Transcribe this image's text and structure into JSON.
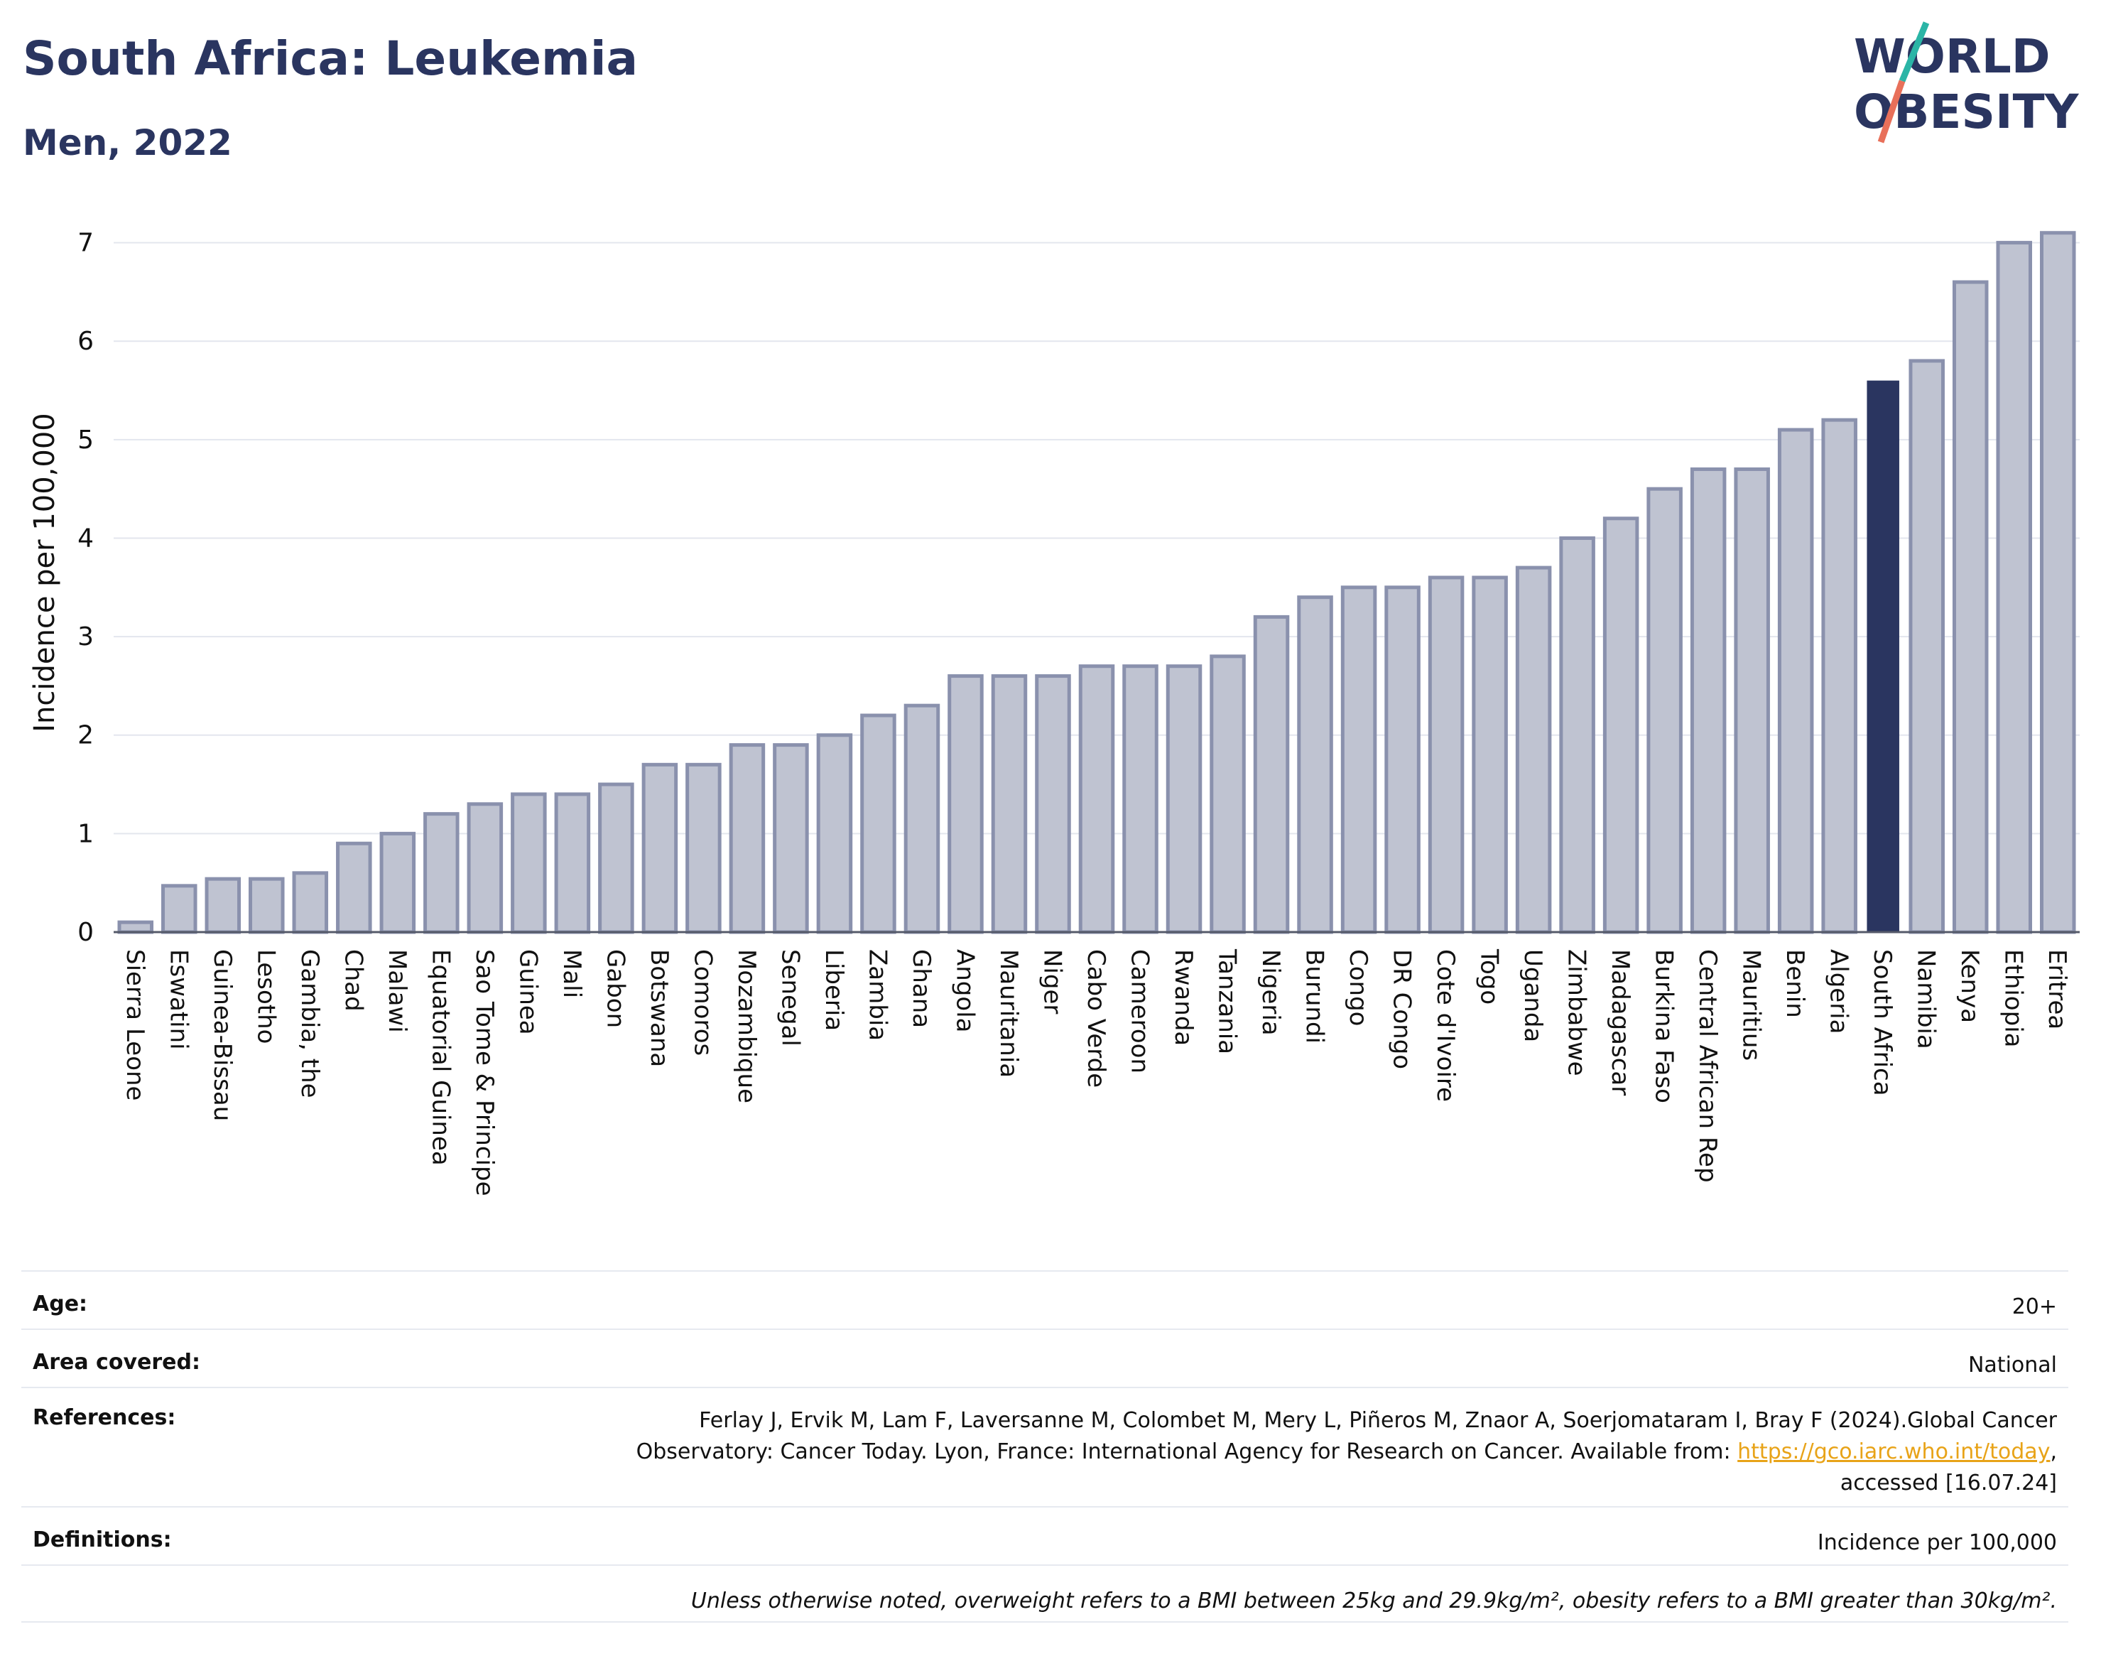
{
  "header": {
    "title": "South Africa: Leukemia",
    "subtitle": "Men, 2022",
    "logo_line1": "WORLD",
    "logo_line2": "OBESITY"
  },
  "colors": {
    "highlight": "#2a3560",
    "bar_fill": "#bfc3d1",
    "bar_stroke": "#8a91ad",
    "grid": "#e3e6ee",
    "logo_teal": "#2bb5a6",
    "logo_coral": "#e8705a"
  },
  "chart_data": {
    "type": "bar",
    "title": "South Africa: Leukemia",
    "subtitle": "Men, 2022",
    "ylabel": "Incidence per 100,000",
    "xlabel": "",
    "ylim": [
      0,
      7.3
    ],
    "yticks": [
      0,
      1,
      2,
      3,
      4,
      5,
      6,
      7
    ],
    "grid": true,
    "highlight": "South Africa",
    "categories": [
      "Sierra Leone",
      "Eswatini",
      "Guinea-Bissau",
      "Lesotho",
      "Gambia, the",
      "Chad",
      "Malawi",
      "Equatorial Guinea",
      "Sao Tome & Principe",
      "Guinea",
      "Mali",
      "Gabon",
      "Botswana",
      "Comoros",
      "Mozambique",
      "Senegal",
      "Liberia",
      "Zambia",
      "Ghana",
      "Angola",
      "Mauritania",
      "Niger",
      "Cabo Verde",
      "Cameroon",
      "Rwanda",
      "Tanzania",
      "Nigeria",
      "Burundi",
      "Congo",
      "DR Congo",
      "Cote d'Ivoire",
      "Togo",
      "Uganda",
      "Zimbabwe",
      "Madagascar",
      "Burkina Faso",
      "Central African Rep",
      "Mauritius",
      "Benin",
      "Algeria",
      "South Africa",
      "Namibia",
      "Kenya",
      "Ethiopia",
      "Eritrea"
    ],
    "values": [
      0.1,
      0.47,
      0.54,
      0.54,
      0.6,
      0.9,
      1.0,
      1.2,
      1.3,
      1.4,
      1.4,
      1.5,
      1.7,
      1.7,
      1.9,
      1.9,
      2.0,
      2.2,
      2.3,
      2.6,
      2.6,
      2.6,
      2.7,
      2.7,
      2.7,
      2.8,
      3.2,
      3.4,
      3.5,
      3.5,
      3.6,
      3.6,
      3.7,
      4.0,
      4.2,
      4.5,
      4.7,
      4.7,
      5.1,
      5.2,
      5.6,
      5.8,
      6.6,
      7.0,
      7.1
    ]
  },
  "meta": {
    "age_label": "Age:",
    "age_value": "20+",
    "area_label": "Area covered:",
    "area_value": "National",
    "refs_label": "References:",
    "refs_line1": "Ferlay J, Ervik M, Lam F, Laversanne M, Colombet M, Mery L, Piñeros M, Znaor A, Soerjomataram I, Bray F (2024).Global Cancer",
    "refs_line2_pre": "Observatory: Cancer Today. Lyon, France: International Agency for Research on Cancer. Available from: ",
    "refs_link": "https://gco.iarc.who.int/today",
    "refs_line2_post": ",",
    "refs_line3": "accessed [16.07.24]",
    "defs_label": "Definitions:",
    "defs_value": "Incidence per 100,000",
    "note": "Unless otherwise noted, overweight refers to a BMI between 25kg and 29.9kg/m², obesity refers to a BMI greater than 30kg/m²."
  }
}
